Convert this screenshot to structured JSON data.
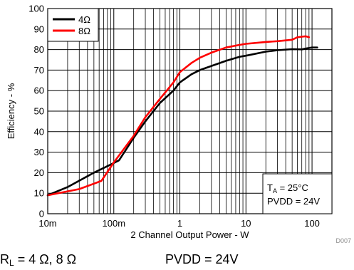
{
  "chart_data": {
    "type": "line",
    "xlabel": "2 Channel Output Power - W",
    "ylabel": "Efficiency - %",
    "xscale": "log",
    "xlim": [
      0.01,
      200
    ],
    "ylim": [
      0,
      100
    ],
    "grid": true,
    "legend_position": "top-left",
    "x_tick_labels": [
      "10m",
      "100m",
      "1",
      "10",
      "100"
    ],
    "x_tick_values": [
      0.01,
      0.1,
      1,
      10,
      100
    ],
    "y_ticks": [
      0,
      10,
      20,
      30,
      40,
      50,
      60,
      70,
      80,
      90,
      100
    ],
    "series": [
      {
        "name": "4Ω",
        "color": "#000000",
        "x": [
          0.01,
          0.02,
          0.05,
          0.09,
          0.12,
          0.2,
          0.3,
          0.5,
          0.8,
          1,
          1.5,
          2,
          3,
          5,
          8,
          10,
          20,
          30,
          50,
          70,
          80,
          100,
          120
        ],
        "y": [
          9,
          13,
          20,
          24,
          26,
          37,
          45,
          54,
          60,
          64,
          68,
          70,
          72,
          74.5,
          76.5,
          77,
          79,
          79.7,
          80.2,
          80.1,
          80.5,
          81,
          81
        ]
      },
      {
        "name": "8Ω",
        "color": "#ff0000",
        "x": [
          0.01,
          0.03,
          0.065,
          0.1,
          0.2,
          0.3,
          0.5,
          0.8,
          1,
          1.5,
          2,
          3,
          5,
          8,
          10,
          20,
          30,
          50,
          60,
          70,
          80,
          90
        ],
        "y": [
          9,
          12,
          16,
          25,
          38,
          47,
          56,
          64,
          69,
          73.5,
          76,
          78.5,
          81,
          82.3,
          82.8,
          83.7,
          84.1,
          84.8,
          86.0,
          86.3,
          86.5,
          86
        ]
      }
    ],
    "annotation": [
      "T_A = 25°C",
      "PVDD = 24V"
    ],
    "figure_id": "D007",
    "caption_left": "R_L = 4 Ω, 8 Ω",
    "caption_right": "PVDD = 24V"
  }
}
